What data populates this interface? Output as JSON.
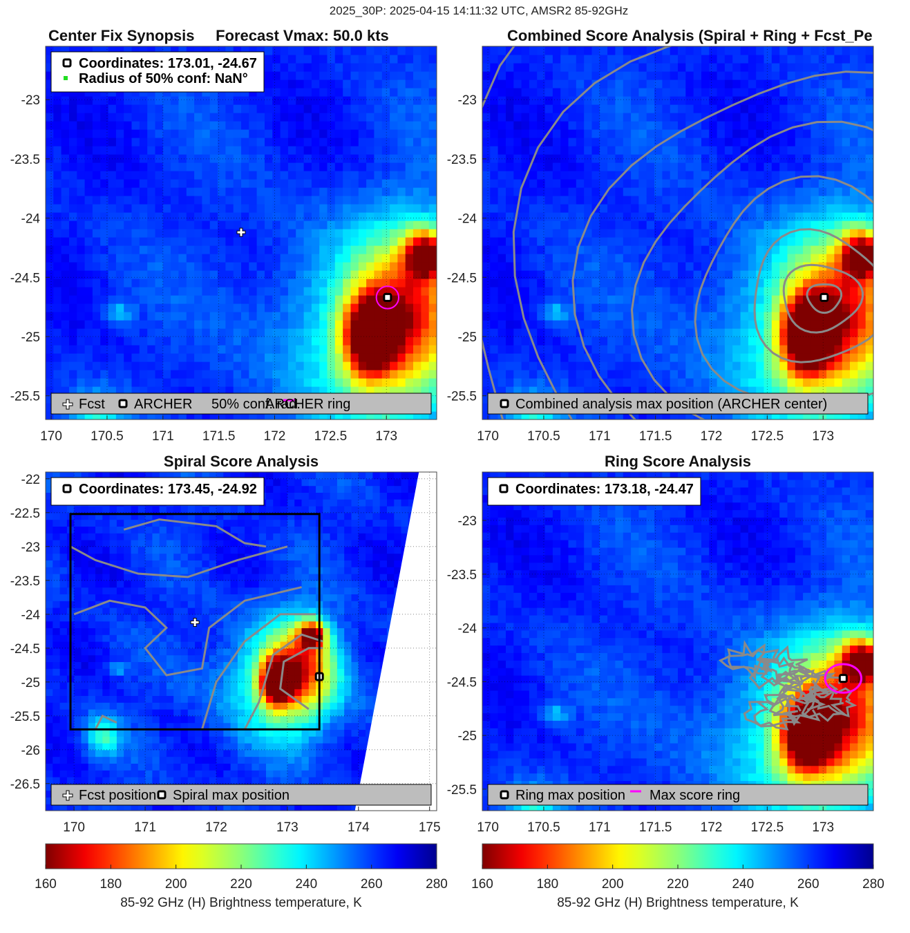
{
  "figure": {
    "suptitle": "2025_30P: 2025-04-15 14:11:32 UTC, AMSR2 85-92GHz"
  },
  "colors": {
    "colormap": [
      "#7f0000",
      "#ff0000",
      "#ffff00",
      "#00ffff",
      "#0000ff",
      "#00008f"
    ],
    "background_cold": "#1a2fd8",
    "contour": "#8a8a8a",
    "conf_ring": "#ff00ff",
    "legend_box": "#bdbdbd"
  },
  "chart_data": [
    {
      "type": "heatmap",
      "id": "center-fix",
      "title": "Center Fix Synopsis     Forecast Vmax: 50.0 kts",
      "xlim": [
        169.95,
        173.45
      ],
      "ylim": [
        -25.7,
        -22.55
      ],
      "xticks": [
        170,
        170.5,
        171,
        171.5,
        172,
        172.5,
        173
      ],
      "yticks": [
        -23,
        -23.5,
        -24,
        -24.5,
        -25,
        -25.5
      ],
      "info_lines": [
        "Coordinates: 173.01, -24.67",
        "Radius of 50% conf: NaN°"
      ],
      "legend": [
        "Fcst",
        "ARCHER",
        "50% conf. rad.",
        "ARCHER ring"
      ],
      "fcst_position": [
        171.7,
        -24.12
      ],
      "archer_position": [
        173.01,
        -24.67
      ],
      "ring_radius_deg": 0.1
    },
    {
      "type": "heatmap",
      "id": "combined",
      "title": "Combined Score Analysis (Spiral + Ring + Fcst_Pe",
      "xlim": [
        169.95,
        173.45
      ],
      "ylim": [
        -25.7,
        -22.55
      ],
      "xticks": [
        170,
        170.5,
        171,
        171.5,
        172,
        172.5,
        173
      ],
      "yticks": [
        -23,
        -23.5,
        -24,
        -24.5,
        -25,
        -25.5
      ],
      "legend": [
        "Combined analysis max position (ARCHER center)"
      ],
      "max_position": [
        173.01,
        -24.67
      ]
    },
    {
      "type": "heatmap",
      "id": "spiral",
      "title": "Spiral Score Analysis",
      "xlim": [
        169.6,
        175.1
      ],
      "ylim": [
        -26.9,
        -21.9
      ],
      "xticks": [
        170,
        171,
        172,
        173,
        174,
        175
      ],
      "yticks": [
        -22,
        -22.5,
        -23,
        -23.5,
        -24,
        -24.5,
        -25,
        -25.5,
        -26,
        -26.5
      ],
      "info_lines": [
        "Coordinates: 173.45, -24.92"
      ],
      "legend": [
        "Fcst position",
        "Spiral max position"
      ],
      "fcst_position": [
        171.7,
        -24.12
      ],
      "max_position": [
        173.45,
        -24.92
      ],
      "search_box": {
        "x": [
          169.95,
          173.45
        ],
        "y": [
          -25.7,
          -22.52
        ]
      }
    },
    {
      "type": "heatmap",
      "id": "ring",
      "title": "Ring Score Analysis",
      "xlim": [
        169.95,
        173.45
      ],
      "ylim": [
        -25.7,
        -22.55
      ],
      "xticks": [
        170,
        170.5,
        171,
        171.5,
        172,
        172.5,
        173
      ],
      "yticks": [
        -23,
        -23.5,
        -24,
        -24.5,
        -25,
        -25.5
      ],
      "info_lines": [
        "Coordinates: 173.18, -24.47"
      ],
      "legend": [
        "Ring max position",
        "Max score ring"
      ],
      "max_position": [
        173.18,
        -24.47
      ],
      "ring_radius_deg": 0.15
    }
  ],
  "colorbars": [
    {
      "range": [
        160,
        280
      ],
      "ticks": [
        160,
        180,
        200,
        220,
        240,
        260,
        280
      ],
      "label": "85-92 GHz (H) Brightness temperature, K"
    },
    {
      "range": [
        160,
        280
      ],
      "ticks": [
        160,
        180,
        200,
        220,
        240,
        260,
        280
      ],
      "label": "85-92 GHz (H) Brightness temperature, K"
    }
  ]
}
